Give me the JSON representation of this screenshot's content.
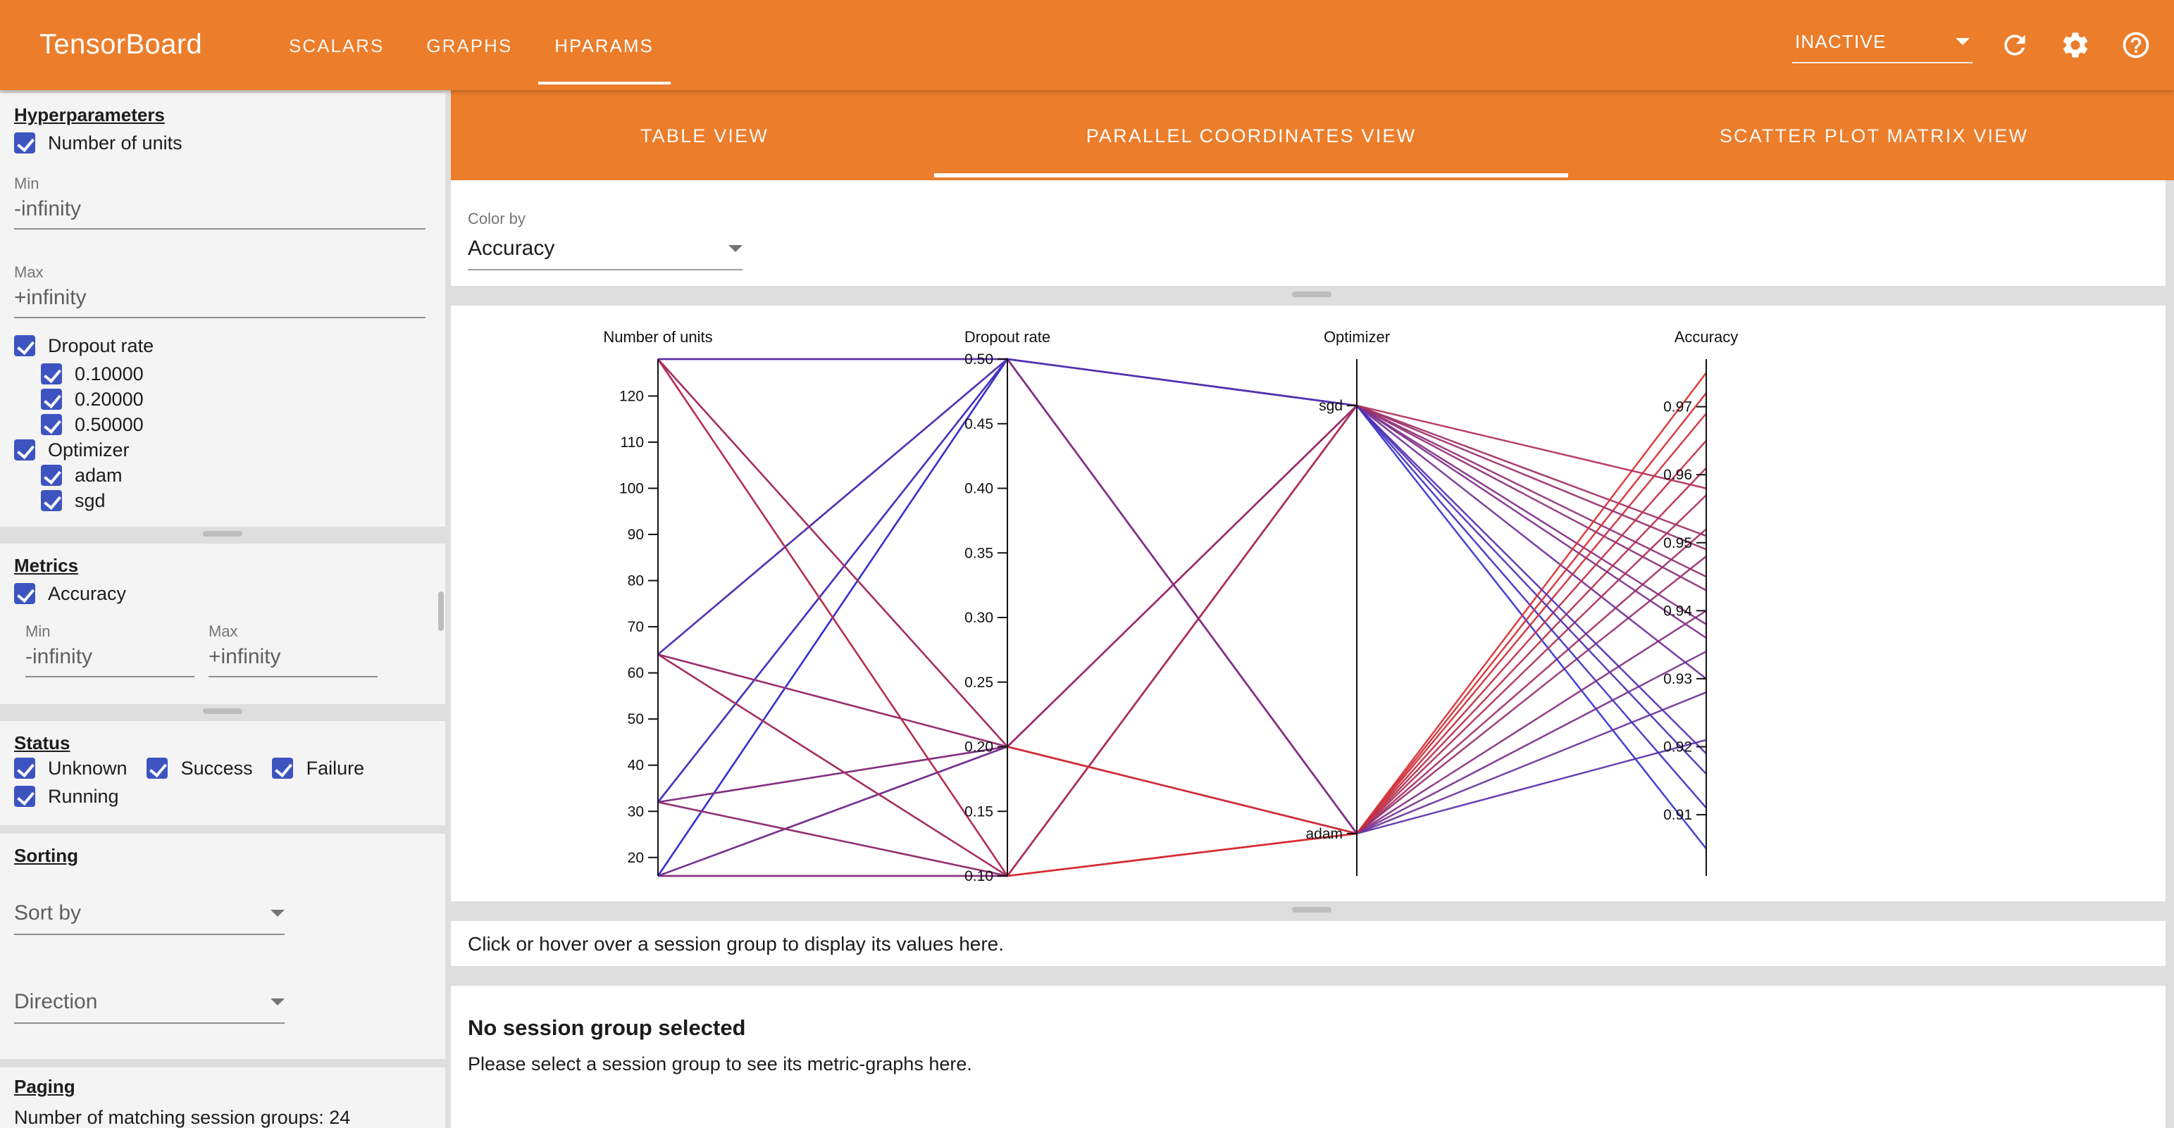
{
  "colors": {
    "accent": "#eb7d2b",
    "checkbox_blue": "#3d54c0",
    "line_low": "#3431cf",
    "line_high": "#d92f2f"
  },
  "topbar": {
    "title": "TensorBoard",
    "tabs": [
      {
        "label": "SCALARS"
      },
      {
        "label": "GRAPHS"
      },
      {
        "label": "HPARAMS"
      }
    ],
    "active_tab": "HPARAMS",
    "status_select": {
      "value": "INACTIVE"
    },
    "icons": {
      "reload": "reload-icon",
      "settings": "gear-icon",
      "help": "help-icon"
    }
  },
  "sidebar": {
    "hyperparameters": {
      "heading": "Hyperparameters",
      "number_of_units": {
        "label": "Number of units",
        "checked": true,
        "min_label": "Min",
        "min_value": "-infinity",
        "max_label": "Max",
        "max_value": "+infinity"
      },
      "dropout_rate": {
        "label": "Dropout rate",
        "checked": true,
        "options": [
          {
            "label": "0.10000",
            "checked": true
          },
          {
            "label": "0.20000",
            "checked": true
          },
          {
            "label": "0.50000",
            "checked": true
          }
        ]
      },
      "optimizer": {
        "label": "Optimizer",
        "checked": true,
        "options": [
          {
            "label": "adam",
            "checked": true
          },
          {
            "label": "sgd",
            "checked": true
          }
        ]
      }
    },
    "metrics": {
      "heading": "Metrics",
      "accuracy": {
        "label": "Accuracy",
        "checked": true
      },
      "min_label": "Min",
      "min_value": "-infinity",
      "max_label": "Max",
      "max_value": "+infinity"
    },
    "status": {
      "heading": "Status",
      "options": [
        {
          "label": "Unknown",
          "checked": true
        },
        {
          "label": "Success",
          "checked": true
        },
        {
          "label": "Failure",
          "checked": true
        },
        {
          "label": "Running",
          "checked": true
        }
      ]
    },
    "sorting": {
      "heading": "Sorting",
      "sort_by_label": "Sort by",
      "direction_label": "Direction"
    },
    "paging": {
      "heading": "Paging",
      "matching_text": "Number of matching session groups: 24"
    }
  },
  "main": {
    "view_tabs": [
      {
        "label": "TABLE VIEW"
      },
      {
        "label": "PARALLEL COORDINATES VIEW"
      },
      {
        "label": "SCATTER PLOT MATRIX VIEW"
      }
    ],
    "active_view": "PARALLEL COORDINATES VIEW",
    "color_by": {
      "label": "Color by",
      "value": "Accuracy"
    },
    "hover_message": "Click or hover over a session group to display its values here.",
    "empty_state": {
      "title": "No session group selected",
      "subtitle": "Please select a session group to see its metric-graphs here."
    }
  },
  "chart_data": {
    "type": "parallel-coordinates",
    "color": {
      "by": "Accuracy",
      "domain": [
        0.905,
        0.975
      ],
      "low": "#3431cf",
      "high": "#d92f2f"
    },
    "axes": [
      {
        "name": "Number of units",
        "type": "linear",
        "domain": [
          16,
          128
        ],
        "ticks": [
          "20",
          "30",
          "40",
          "50",
          "60",
          "70",
          "80",
          "90",
          "100",
          "110",
          "120"
        ]
      },
      {
        "name": "Dropout rate",
        "type": "linear",
        "domain": [
          0.1,
          0.5
        ],
        "ticks": [
          "0.10",
          "0.15",
          "0.20",
          "0.25",
          "0.30",
          "0.35",
          "0.40",
          "0.45",
          "0.50"
        ]
      },
      {
        "name": "Optimizer",
        "type": "categorical",
        "categories": [
          {
            "label": "sgd",
            "position": 0.09
          },
          {
            "label": "adam",
            "position": 0.918
          }
        ]
      },
      {
        "name": "Accuracy",
        "type": "linear",
        "domain": [
          0.901,
          0.977
        ],
        "ticks": [
          "0.91",
          "0.92",
          "0.93",
          "0.94",
          "0.95",
          "0.96",
          "0.97"
        ]
      }
    ],
    "sessions": [
      {
        "units": 16,
        "dropout": 0.1,
        "optimizer": "adam",
        "accuracy": 0.952
      },
      {
        "units": 16,
        "dropout": 0.1,
        "optimizer": "sgd",
        "accuracy": 0.938
      },
      {
        "units": 16,
        "dropout": 0.2,
        "optimizer": "adam",
        "accuracy": 0.948
      },
      {
        "units": 16,
        "dropout": 0.2,
        "optimizer": "sgd",
        "accuracy": 0.93
      },
      {
        "units": 16,
        "dropout": 0.5,
        "optimizer": "adam",
        "accuracy": 0.921
      },
      {
        "units": 16,
        "dropout": 0.5,
        "optimizer": "sgd",
        "accuracy": 0.905
      },
      {
        "units": 32,
        "dropout": 0.1,
        "optimizer": "adam",
        "accuracy": 0.961
      },
      {
        "units": 32,
        "dropout": 0.1,
        "optimizer": "sgd",
        "accuracy": 0.943
      },
      {
        "units": 32,
        "dropout": 0.2,
        "optimizer": "adam",
        "accuracy": 0.957
      },
      {
        "units": 32,
        "dropout": 0.2,
        "optimizer": "sgd",
        "accuracy": 0.936
      },
      {
        "units": 32,
        "dropout": 0.5,
        "optimizer": "adam",
        "accuracy": 0.928
      },
      {
        "units": 32,
        "dropout": 0.5,
        "optimizer": "sgd",
        "accuracy": 0.911
      },
      {
        "units": 64,
        "dropout": 0.1,
        "optimizer": "adam",
        "accuracy": 0.969
      },
      {
        "units": 64,
        "dropout": 0.1,
        "optimizer": "sgd",
        "accuracy": 0.951
      },
      {
        "units": 64,
        "dropout": 0.2,
        "optimizer": "adam",
        "accuracy": 0.965
      },
      {
        "units": 64,
        "dropout": 0.2,
        "optimizer": "sgd",
        "accuracy": 0.945
      },
      {
        "units": 64,
        "dropout": 0.5,
        "optimizer": "adam",
        "accuracy": 0.934
      },
      {
        "units": 64,
        "dropout": 0.5,
        "optimizer": "sgd",
        "accuracy": 0.916
      },
      {
        "units": 128,
        "dropout": 0.1,
        "optimizer": "adam",
        "accuracy": 0.975
      },
      {
        "units": 128,
        "dropout": 0.1,
        "optimizer": "sgd",
        "accuracy": 0.958
      },
      {
        "units": 128,
        "dropout": 0.2,
        "optimizer": "adam",
        "accuracy": 0.972
      },
      {
        "units": 128,
        "dropout": 0.2,
        "optimizer": "sgd",
        "accuracy": 0.949
      },
      {
        "units": 128,
        "dropout": 0.5,
        "optimizer": "adam",
        "accuracy": 0.94
      },
      {
        "units": 128,
        "dropout": 0.5,
        "optimizer": "sgd",
        "accuracy": 0.919
      }
    ]
  }
}
